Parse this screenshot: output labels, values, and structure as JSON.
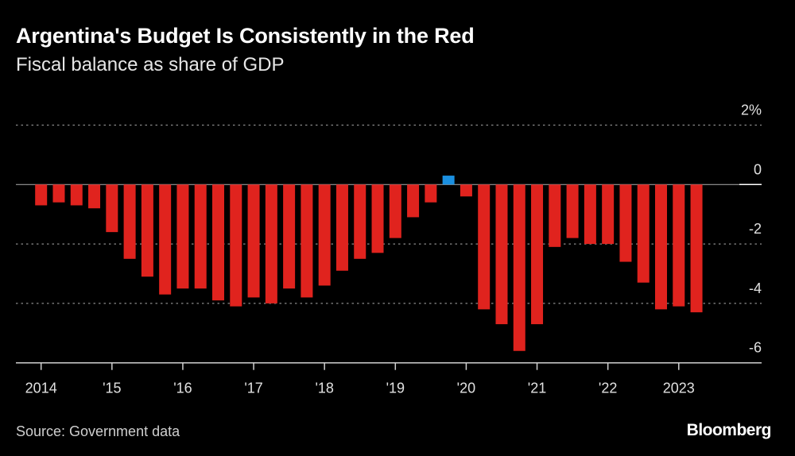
{
  "title": "Argentina's Budget Is Consistently in the Red",
  "subtitle": "Fiscal balance as share of GDP",
  "source": "Source: Government data",
  "logo": "Bloomberg",
  "colors": {
    "negative": "#e0231e",
    "positive": "#1a8fe0",
    "background": "#000000"
  },
  "chart_data": {
    "type": "bar",
    "title": "Argentina's Budget Is Consistently in the Red",
    "subtitle": "Fiscal balance as share of GDP",
    "xlabel": "",
    "ylabel": "",
    "ylim": [
      -6,
      2
    ],
    "y_ticks": [
      2,
      0,
      -2,
      -4,
      -6
    ],
    "y_tick_labels": [
      "2%",
      "0",
      "-2",
      "-4",
      "-6"
    ],
    "x_tick_labels": [
      "2014",
      "'15",
      "'16",
      "'17",
      "'18",
      "'19",
      "'20",
      "'21",
      "'22",
      "2023"
    ],
    "grid": true,
    "y_axis_position": "right",
    "categories": [
      "2014 Q1",
      "2014 Q2",
      "2014 Q3",
      "2014 Q4",
      "2015 Q1",
      "2015 Q2",
      "2015 Q3",
      "2015 Q4",
      "2016 Q1",
      "2016 Q2",
      "2016 Q3",
      "2016 Q4",
      "2017 Q1",
      "2017 Q2",
      "2017 Q3",
      "2017 Q4",
      "2018 Q1",
      "2018 Q2",
      "2018 Q3",
      "2018 Q4",
      "2019 Q1",
      "2019 Q2",
      "2019 Q3",
      "2019 Q4",
      "2020 Q1",
      "2020 Q2",
      "2020 Q3",
      "2020 Q4",
      "2021 Q1",
      "2021 Q2",
      "2021 Q3",
      "2021 Q4",
      "2022 Q1",
      "2022 Q2",
      "2022 Q3",
      "2022 Q4",
      "2023 Q1",
      "2023 Q2"
    ],
    "values": [
      -0.7,
      -0.6,
      -0.7,
      -0.8,
      -1.6,
      -2.5,
      -3.1,
      -3.7,
      -3.5,
      -3.5,
      -3.9,
      -4.1,
      -3.8,
      -4.0,
      -3.5,
      -3.8,
      -3.4,
      -2.9,
      -2.5,
      -2.3,
      -1.8,
      -1.1,
      -0.6,
      0.3,
      -0.4,
      -4.2,
      -4.7,
      -5.6,
      -4.7,
      -2.1,
      -1.8,
      -2.0,
      -2.0,
      -2.6,
      -3.3,
      -4.2,
      -4.1,
      -4.3
    ]
  }
}
